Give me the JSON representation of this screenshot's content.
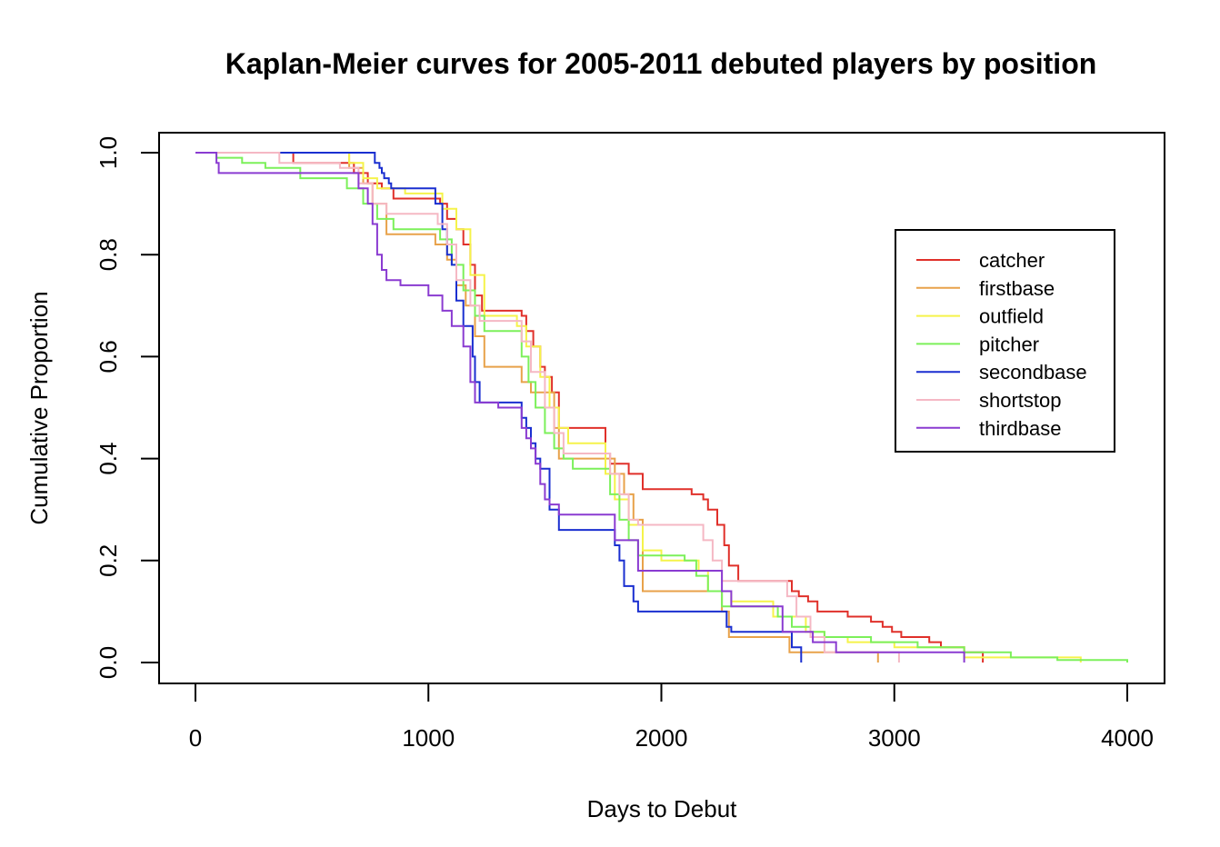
{
  "chart_data": {
    "type": "line",
    "step": true,
    "title": "Kaplan-Meier curves for 2005-2011 debuted players by position",
    "xlabel": "Days to Debut",
    "ylabel": "Cumulative Proportion",
    "xlim": [
      0,
      4000
    ],
    "ylim": [
      0,
      1
    ],
    "xticks": [
      0,
      1000,
      2000,
      3000,
      4000
    ],
    "xtick_labels": [
      "0",
      "1000",
      "2000",
      "3000",
      "4000"
    ],
    "yticks": [
      0,
      0.2,
      0.4,
      0.6,
      0.8,
      1.0
    ],
    "ytick_labels": [
      "0.0",
      "0.2",
      "0.4",
      "0.6",
      "0.8",
      "1.0"
    ],
    "grid": false,
    "legend_position": "top-right",
    "series": [
      {
        "name": "catcher",
        "color": "#E0302A",
        "x": [
          0,
          420,
          520,
          680,
          740,
          800,
          850,
          1050,
          1080,
          1120,
          1150,
          1180,
          1200,
          1230,
          1400,
          1420,
          1450,
          1480,
          1500,
          1530,
          1560,
          1560,
          1760,
          1780,
          1860,
          1920,
          2130,
          2180,
          2200,
          2240,
          2270,
          2290,
          2330,
          2560,
          2590,
          2630,
          2670,
          2700,
          2800,
          2900,
          2950,
          2990,
          3030,
          3150,
          3200,
          3300,
          3380
        ],
        "y": [
          1.0,
          0.98,
          0.98,
          0.96,
          0.94,
          0.93,
          0.91,
          0.9,
          0.87,
          0.85,
          0.82,
          0.78,
          0.72,
          0.69,
          0.68,
          0.65,
          0.62,
          0.58,
          0.56,
          0.53,
          0.5,
          0.46,
          0.41,
          0.39,
          0.37,
          0.34,
          0.33,
          0.32,
          0.3,
          0.27,
          0.23,
          0.19,
          0.16,
          0.14,
          0.13,
          0.12,
          0.1,
          0.1,
          0.09,
          0.08,
          0.07,
          0.06,
          0.05,
          0.04,
          0.03,
          0.02,
          0.0
        ]
      },
      {
        "name": "firstbase",
        "color": "#E8A24A",
        "x": [
          0,
          660,
          720,
          760,
          820,
          1030,
          1080,
          1120,
          1160,
          1200,
          1240,
          1400,
          1440,
          1540,
          1560,
          1800,
          1840,
          1880,
          1920,
          2260,
          2290,
          2550,
          2930
        ],
        "y": [
          1.0,
          0.97,
          0.94,
          0.9,
          0.84,
          0.82,
          0.79,
          0.74,
          0.7,
          0.64,
          0.58,
          0.55,
          0.53,
          0.46,
          0.4,
          0.37,
          0.33,
          0.28,
          0.14,
          0.1,
          0.05,
          0.02,
          0.0
        ]
      },
      {
        "name": "outfield",
        "color": "#F5F34A",
        "x": [
          0,
          660,
          720,
          780,
          900,
          1060,
          1120,
          1180,
          1240,
          1380,
          1420,
          1480,
          1520,
          1560,
          1600,
          1760,
          1800,
          1860,
          1920,
          2000,
          2160,
          2200,
          2300,
          2480,
          2620,
          2700,
          2800,
          3000,
          3300,
          3800
        ],
        "y": [
          1.0,
          0.98,
          0.95,
          0.93,
          0.92,
          0.89,
          0.85,
          0.76,
          0.68,
          0.66,
          0.62,
          0.56,
          0.5,
          0.46,
          0.43,
          0.37,
          0.32,
          0.27,
          0.22,
          0.2,
          0.18,
          0.14,
          0.12,
          0.09,
          0.06,
          0.05,
          0.04,
          0.03,
          0.01,
          0.0
        ]
      },
      {
        "name": "pitcher",
        "color": "#7CF05A",
        "x": [
          0,
          90,
          200,
          300,
          450,
          520,
          650,
          720,
          780,
          850,
          1050,
          1100,
          1150,
          1200,
          1240,
          1400,
          1430,
          1460,
          1500,
          1540,
          1580,
          1620,
          1780,
          1820,
          1860,
          1900,
          1940,
          2100,
          2150,
          2200,
          2260,
          2330,
          2500,
          2560,
          2640,
          2700,
          2900,
          3100,
          3300,
          3500,
          3700,
          4000
        ],
        "y": [
          1.0,
          0.99,
          0.98,
          0.97,
          0.95,
          0.95,
          0.93,
          0.9,
          0.87,
          0.85,
          0.83,
          0.78,
          0.73,
          0.68,
          0.65,
          0.6,
          0.55,
          0.5,
          0.45,
          0.42,
          0.4,
          0.38,
          0.33,
          0.28,
          0.24,
          0.21,
          0.21,
          0.2,
          0.17,
          0.14,
          0.11,
          0.11,
          0.09,
          0.07,
          0.06,
          0.05,
          0.04,
          0.03,
          0.02,
          0.01,
          0.005,
          0.0
        ]
      },
      {
        "name": "secondbase",
        "color": "#1A2FD0",
        "x": [
          0,
          370,
          770,
          790,
          800,
          810,
          830,
          840,
          1030,
          1060,
          1080,
          1100,
          1120,
          1150,
          1190,
          1200,
          1220,
          1400,
          1420,
          1440,
          1460,
          1480,
          1520,
          1560,
          1600,
          1800,
          1820,
          1840,
          1880,
          1900,
          2280,
          2300,
          2560,
          2600
        ],
        "y": [
          1.0,
          1.0,
          0.98,
          0.97,
          0.96,
          0.95,
          0.94,
          0.93,
          0.9,
          0.85,
          0.8,
          0.78,
          0.71,
          0.66,
          0.6,
          0.55,
          0.51,
          0.48,
          0.46,
          0.43,
          0.4,
          0.38,
          0.3,
          0.26,
          0.26,
          0.23,
          0.2,
          0.15,
          0.12,
          0.1,
          0.07,
          0.06,
          0.03,
          0.0
        ]
      },
      {
        "name": "shortstop",
        "color": "#F5B8C4",
        "x": [
          0,
          360,
          620,
          700,
          760,
          820,
          1040,
          1080,
          1120,
          1180,
          1220,
          1400,
          1440,
          1500,
          1540,
          1580,
          1780,
          1820,
          1860,
          1900,
          2020,
          2140,
          2180,
          2220,
          2260,
          2540,
          2580,
          2640,
          2700,
          3020
        ],
        "y": [
          1.0,
          0.98,
          0.97,
          0.94,
          0.9,
          0.88,
          0.86,
          0.82,
          0.75,
          0.7,
          0.67,
          0.63,
          0.57,
          0.5,
          0.45,
          0.41,
          0.37,
          0.33,
          0.28,
          0.27,
          0.27,
          0.27,
          0.24,
          0.2,
          0.16,
          0.13,
          0.09,
          0.05,
          0.02,
          0.0
        ]
      },
      {
        "name": "thirdbase",
        "color": "#8A3BD1",
        "x": [
          0,
          90,
          100,
          700,
          740,
          760,
          780,
          800,
          820,
          880,
          1000,
          1060,
          1100,
          1150,
          1180,
          1200,
          1300,
          1400,
          1420,
          1440,
          1460,
          1480,
          1500,
          1520,
          1560,
          1600,
          1800,
          1900,
          2100,
          2260,
          2300,
          2520,
          2650,
          2750,
          3300
        ],
        "y": [
          1.0,
          0.98,
          0.96,
          0.93,
          0.9,
          0.86,
          0.8,
          0.77,
          0.75,
          0.74,
          0.72,
          0.69,
          0.66,
          0.62,
          0.55,
          0.51,
          0.5,
          0.46,
          0.44,
          0.42,
          0.39,
          0.35,
          0.32,
          0.31,
          0.29,
          0.29,
          0.24,
          0.18,
          0.18,
          0.14,
          0.11,
          0.06,
          0.04,
          0.02,
          0.0
        ]
      }
    ]
  }
}
